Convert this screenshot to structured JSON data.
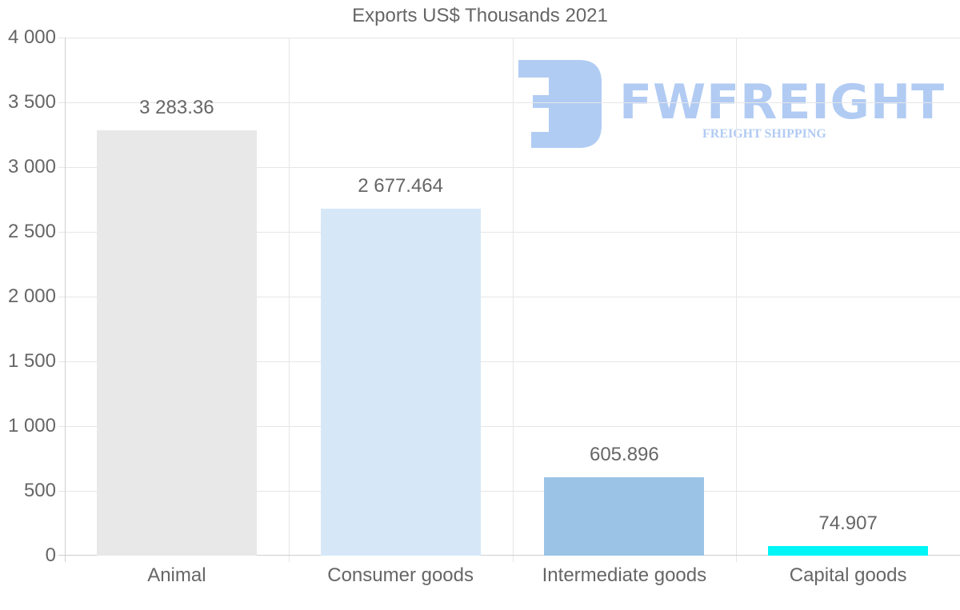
{
  "chart_data": {
    "type": "bar",
    "title": "Exports US$ Thousands 2021",
    "xlabel": "",
    "ylabel": "",
    "ylim": [
      0,
      4000
    ],
    "yticks": [
      "0",
      "500",
      "1 000",
      "1 500",
      "2 000",
      "2 500",
      "3 000",
      "3 500",
      "4 000"
    ],
    "categories": [
      "Animal",
      "Consumer goods",
      "Intermediate goods",
      "Capital goods"
    ],
    "values": [
      3283.36,
      2677.464,
      605.896,
      74.907
    ],
    "value_labels": [
      "3 283.36",
      "2 677.464",
      "605.896",
      "74.907"
    ],
    "colors": [
      "#e8e8e8",
      "#d6e8f8",
      "#9ac3e6",
      "#00f6f6"
    ],
    "grid": true,
    "legend": "none"
  },
  "watermark": {
    "brand": "FWFREIGHT",
    "tagline": "FREIGHT SHIPPING",
    "color": "#a9c6f2"
  }
}
